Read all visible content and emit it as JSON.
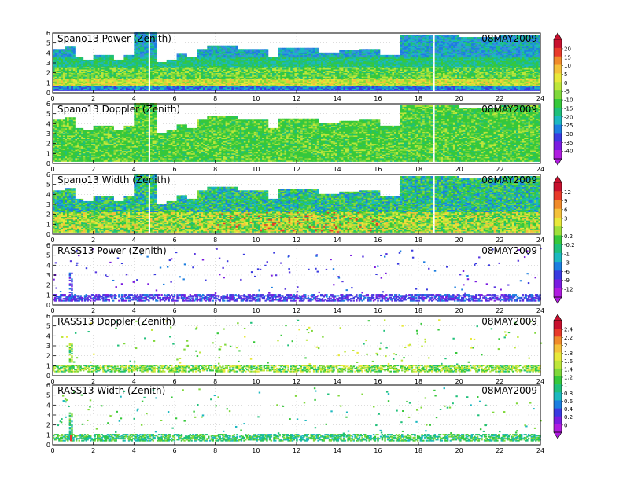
{
  "chart_data": [
    {
      "type": "heatmap",
      "title": "Spano13 Power (Zenith)",
      "date": "08MAY2009",
      "x_ticks": [
        0,
        2,
        4,
        6,
        8,
        10,
        12,
        14,
        16,
        18,
        20,
        22,
        24
      ],
      "y_ticks": [
        0,
        1,
        2,
        3,
        4,
        5,
        6
      ],
      "xlim": [
        0,
        24
      ],
      "ylim": [
        0,
        6
      ],
      "colorbar_group": 0,
      "profile": "spano",
      "pattern": "power",
      "top_height": [
        [
          0,
          4.3
        ],
        [
          0.5,
          4.6
        ],
        [
          1,
          3.5
        ],
        [
          1.5,
          3.3
        ],
        [
          2,
          3.8
        ],
        [
          3,
          3.3
        ],
        [
          3.5,
          3.7
        ],
        [
          4.0,
          6.0
        ],
        [
          4.5,
          6.0
        ],
        [
          5.0,
          3.0
        ],
        [
          5.5,
          3.3
        ],
        [
          6.0,
          3.9
        ],
        [
          6.5,
          3.5
        ],
        [
          7.0,
          4.4
        ],
        [
          7.5,
          4.7
        ],
        [
          8.0,
          4.7
        ],
        [
          9.0,
          4.3
        ],
        [
          10.0,
          4.3
        ],
        [
          10.5,
          3.5
        ],
        [
          11.0,
          4.5
        ],
        [
          12.0,
          4.5
        ],
        [
          13.0,
          4.0
        ],
        [
          14.0,
          4.2
        ],
        [
          15.0,
          4.3
        ],
        [
          16.0,
          3.7
        ],
        [
          16.5,
          3.8
        ],
        [
          17.0,
          5.8
        ],
        [
          18.0,
          5.8
        ],
        [
          19.0,
          5.8
        ],
        [
          20.0,
          5.6
        ],
        [
          22.0,
          5.8
        ],
        [
          24.0,
          5.7
        ]
      ],
      "gaps": [
        4.7,
        18.7
      ]
    },
    {
      "type": "heatmap",
      "title": "Spano13 Doppler (Zenith)",
      "date": "08MAY2009",
      "x_ticks": [
        0,
        2,
        4,
        6,
        8,
        10,
        12,
        14,
        16,
        18,
        20,
        22,
        24
      ],
      "y_ticks": [
        0,
        1,
        2,
        3,
        4,
        5,
        6
      ],
      "xlim": [
        0,
        24
      ],
      "ylim": [
        0,
        6
      ],
      "colorbar_group": 0,
      "profile": "spano",
      "pattern": "doppler",
      "top_height": [
        [
          0,
          4.3
        ],
        [
          0.5,
          4.6
        ],
        [
          1,
          3.5
        ],
        [
          1.5,
          3.3
        ],
        [
          2,
          3.8
        ],
        [
          3,
          3.3
        ],
        [
          3.5,
          3.7
        ],
        [
          4.0,
          6.0
        ],
        [
          4.5,
          6.0
        ],
        [
          5.0,
          3.0
        ],
        [
          5.5,
          3.3
        ],
        [
          6.0,
          3.9
        ],
        [
          6.5,
          3.5
        ],
        [
          7.0,
          4.4
        ],
        [
          7.5,
          4.7
        ],
        [
          8.0,
          4.7
        ],
        [
          9.0,
          4.3
        ],
        [
          10.0,
          4.3
        ],
        [
          10.5,
          3.5
        ],
        [
          11.0,
          4.5
        ],
        [
          12.0,
          4.5
        ],
        [
          13.0,
          4.0
        ],
        [
          14.0,
          4.2
        ],
        [
          15.0,
          4.3
        ],
        [
          16.0,
          3.7
        ],
        [
          16.5,
          3.8
        ],
        [
          17.0,
          5.8
        ],
        [
          18.0,
          5.8
        ],
        [
          19.0,
          5.8
        ],
        [
          20.0,
          5.6
        ],
        [
          22.0,
          5.8
        ],
        [
          24.0,
          5.7
        ]
      ],
      "gaps": [
        4.7,
        18.7
      ]
    },
    {
      "type": "heatmap",
      "title": "Spano13 Width (Zenith)",
      "date": "08MAY2009",
      "x_ticks": [
        0,
        2,
        4,
        6,
        8,
        10,
        12,
        14,
        16,
        18,
        20,
        22,
        24
      ],
      "y_ticks": [
        0,
        1,
        2,
        3,
        4,
        5,
        6
      ],
      "xlim": [
        0,
        24
      ],
      "ylim": [
        0,
        6
      ],
      "colorbar_group": 1,
      "profile": "spano",
      "pattern": "width",
      "top_height": [
        [
          0,
          4.3
        ],
        [
          0.5,
          4.6
        ],
        [
          1,
          3.5
        ],
        [
          1.5,
          3.3
        ],
        [
          2,
          3.8
        ],
        [
          3,
          3.3
        ],
        [
          3.5,
          3.7
        ],
        [
          4.0,
          6.0
        ],
        [
          4.5,
          6.0
        ],
        [
          5.0,
          3.0
        ],
        [
          5.5,
          3.3
        ],
        [
          6.0,
          3.9
        ],
        [
          6.5,
          3.5
        ],
        [
          7.0,
          4.4
        ],
        [
          7.5,
          4.7
        ],
        [
          8.0,
          4.7
        ],
        [
          9.0,
          4.3
        ],
        [
          10.0,
          4.3
        ],
        [
          10.5,
          3.5
        ],
        [
          11.0,
          4.5
        ],
        [
          12.0,
          4.5
        ],
        [
          13.0,
          4.0
        ],
        [
          14.0,
          4.2
        ],
        [
          15.0,
          4.3
        ],
        [
          16.0,
          3.7
        ],
        [
          16.5,
          3.8
        ],
        [
          17.0,
          5.8
        ],
        [
          18.0,
          5.8
        ],
        [
          19.0,
          5.8
        ],
        [
          20.0,
          5.6
        ],
        [
          22.0,
          5.8
        ],
        [
          24.0,
          5.7
        ]
      ],
      "gaps": [
        4.7,
        18.7
      ]
    },
    {
      "type": "heatmap",
      "title": "RASS13 Power (Zenith)",
      "date": "08MAY2009",
      "x_ticks": [
        0,
        2,
        4,
        6,
        8,
        10,
        12,
        14,
        16,
        18,
        20,
        22,
        24
      ],
      "y_ticks": [
        0,
        1,
        2,
        3,
        4,
        5,
        6
      ],
      "xlim": [
        0,
        24
      ],
      "ylim": [
        0,
        6
      ],
      "colorbar_group": 1,
      "profile": "rass",
      "pattern": "rass_power",
      "band": [
        0.5,
        1.2
      ],
      "columns": [
        0.8,
        0.9
      ]
    },
    {
      "type": "heatmap",
      "title": "RASS13 Doppler (Zenith)",
      "date": "08MAY2009",
      "x_ticks": [
        0,
        2,
        4,
        6,
        8,
        10,
        12,
        14,
        16,
        18,
        20,
        22,
        24
      ],
      "y_ticks": [
        0,
        1,
        2,
        3,
        4,
        5,
        6
      ],
      "xlim": [
        0,
        24
      ],
      "ylim": [
        0,
        6
      ],
      "colorbar_group": 2,
      "profile": "rass",
      "pattern": "rass_doppler",
      "band": [
        0.5,
        1.2
      ],
      "columns": [
        0.8,
        0.9
      ]
    },
    {
      "type": "heatmap",
      "title": "RASS13 Width (Zenith)",
      "date": "08MAY2009",
      "x_ticks": [
        0,
        2,
        4,
        6,
        8,
        10,
        12,
        14,
        16,
        18,
        20,
        22,
        24
      ],
      "y_ticks": [
        0,
        1,
        2,
        3,
        4,
        5,
        6
      ],
      "xlim": [
        0,
        24
      ],
      "ylim": [
        0,
        6
      ],
      "colorbar_group": 2,
      "profile": "rass",
      "pattern": "rass_width",
      "band": [
        0.5,
        1.2
      ],
      "columns": [
        0.8,
        0.9
      ]
    }
  ],
  "colorbars": [
    {
      "labels": [
        "20",
        "15",
        "10",
        "5",
        "0",
        "-5",
        "-10",
        "-15",
        "-20",
        "-25",
        "-30",
        "-35",
        "-40"
      ],
      "colors": [
        "#c8102e",
        "#e83a2a",
        "#f08a2a",
        "#f4c13a",
        "#e8e83a",
        "#bde63a",
        "#7fd83a",
        "#36c83a",
        "#1fc07a",
        "#1cb8c0",
        "#1c7ee0",
        "#3a3ae0",
        "#7a1ce0",
        "#b01ce0"
      ]
    },
    {
      "labels": [
        "12",
        "9",
        "6",
        "3",
        "1",
        "0.2",
        "-0.2",
        "-1",
        "-3",
        "-6",
        "-9",
        "-12"
      ],
      "colors": [
        "#c8102e",
        "#e83a2a",
        "#f08a2a",
        "#f4c13a",
        "#e8e83a",
        "#9fe03a",
        "#36c83a",
        "#1fc07a",
        "#1cb8c0",
        "#1c7ee0",
        "#3a3ae0",
        "#7a1ce0",
        "#b01ce0"
      ]
    },
    {
      "labels": [
        "2.4",
        "2.2",
        "2",
        "1.8",
        "1.6",
        "1.4",
        "1.2",
        "1",
        "0.8",
        "0.6",
        "0.4",
        "0.2",
        "0"
      ],
      "colors": [
        "#c8102e",
        "#e83a2a",
        "#f08a2a",
        "#f4c13a",
        "#e8e83a",
        "#bde63a",
        "#7fd83a",
        "#36c83a",
        "#1fc07a",
        "#1cb8c0",
        "#1c7ee0",
        "#3a3ae0",
        "#7a1ce0",
        "#b01ce0"
      ]
    }
  ]
}
